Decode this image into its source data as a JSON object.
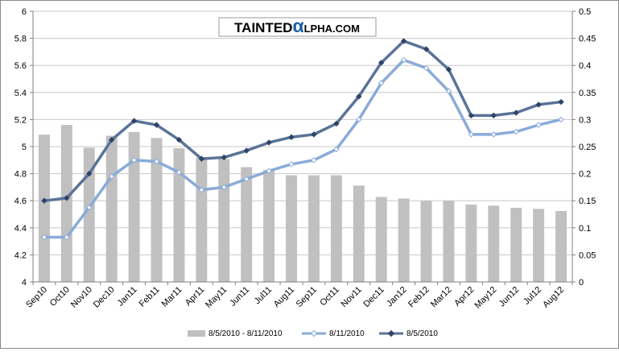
{
  "watermark": {
    "part1": "TAINTED",
    "alpha": "α",
    "part2": "LPHA.COM",
    "alpha_color": "#1c5fa8"
  },
  "colors": {
    "bars": "#c0c0c0",
    "series_8_11": "#8aabd8",
    "series_8_5": "#5a7397",
    "marker_8_5": "#2f4468",
    "marker_8_11": "#ffffff",
    "grid": "#c8c8c8"
  },
  "chart_data": {
    "type": "bar+line",
    "categories": [
      "Sep10",
      "Oct10",
      "Nov10",
      "Dec10",
      "Jan11",
      "Feb11",
      "Mar11",
      "Apr11",
      "May11",
      "Jun11",
      "Jul11",
      "Aug11",
      "Sep11",
      "Oct11",
      "Nov11",
      "Dec11",
      "Jan12",
      "Feb12",
      "Mar12",
      "Apr12",
      "May12",
      "Jun12",
      "Jul12",
      "Aug12"
    ],
    "left_axis": {
      "min": 4,
      "max": 6,
      "step": 0.2,
      "ticks": [
        "4",
        "4.2",
        "4.4",
        "4.6",
        "4.8",
        "5",
        "5.2",
        "5.4",
        "5.6",
        "5.8",
        "6"
      ]
    },
    "right_axis": {
      "min": 0,
      "max": 0.5,
      "step": 0.05,
      "ticks": [
        "0",
        "0.05",
        "0.1",
        "0.15",
        "0.2",
        "0.25",
        "0.3",
        "0.35",
        "0.4",
        "0.45",
        "0.5"
      ]
    },
    "series": [
      {
        "name": "8/5/2010 - 8/11/2010",
        "type": "bar",
        "axis": "right",
        "values": [
          0.272,
          0.29,
          0.248,
          0.27,
          0.277,
          0.266,
          0.247,
          0.23,
          0.227,
          0.212,
          0.207,
          0.197,
          0.197,
          0.197,
          0.178,
          0.157,
          0.154,
          0.15,
          0.15,
          0.143,
          0.141,
          0.137,
          0.135,
          0.131
        ]
      },
      {
        "name": "8/11/2010",
        "type": "line",
        "axis": "left",
        "values": [
          4.33,
          4.33,
          4.55,
          4.78,
          4.9,
          4.89,
          4.81,
          4.68,
          4.7,
          4.76,
          4.82,
          4.87,
          4.9,
          4.98,
          5.2,
          5.47,
          5.64,
          5.58,
          5.41,
          5.09,
          5.09,
          5.11,
          5.16,
          5.2
        ]
      },
      {
        "name": "8/5/2010",
        "type": "line",
        "axis": "left",
        "values": [
          4.6,
          4.62,
          4.8,
          5.05,
          5.19,
          5.16,
          5.05,
          4.91,
          4.92,
          4.97,
          5.03,
          5.07,
          5.09,
          5.17,
          5.37,
          5.62,
          5.78,
          5.72,
          5.57,
          5.23,
          5.23,
          5.25,
          5.31,
          5.33
        ]
      }
    ],
    "grid": true,
    "legend_position": "bottom"
  }
}
